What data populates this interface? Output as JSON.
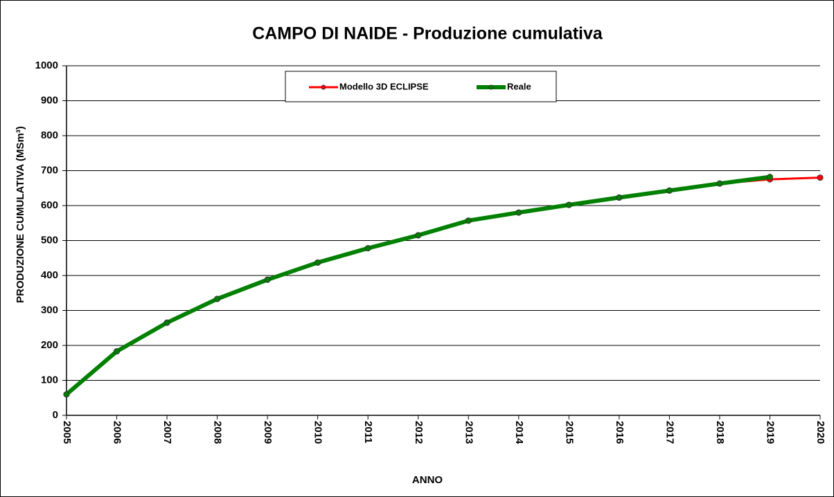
{
  "chart_data": {
    "type": "line",
    "title": "CAMPO DI NAIDE  - Produzione cumulativa",
    "x_label": "ANNO",
    "y_label": "PRODUZIONE  CUMULATIVA (MSm³)",
    "x": [
      2005,
      2006,
      2007,
      2008,
      2009,
      2010,
      2011,
      2012,
      2013,
      2014,
      2015,
      2016,
      2017,
      2018,
      2019,
      2020
    ],
    "xlim": [
      2005,
      2020
    ],
    "xticks": [
      2005,
      2006,
      2007,
      2008,
      2009,
      2010,
      2011,
      2012,
      2013,
      2014,
      2015,
      2016,
      2017,
      2018,
      2019,
      2020
    ],
    "ylim": [
      0,
      1000
    ],
    "yticks": [
      0,
      100,
      200,
      300,
      400,
      500,
      600,
      700,
      800,
      900,
      1000
    ],
    "grid": true,
    "legend": "top",
    "series": [
      {
        "name": "Modello 3D ECLIPSE",
        "color": "#ff0000",
        "values": [
          60,
          183,
          265,
          333,
          388,
          437,
          478,
          515,
          557,
          580,
          602,
          623,
          643,
          663,
          675,
          680
        ]
      },
      {
        "name": "Reale",
        "color": "#008000",
        "values": [
          60,
          183,
          265,
          333,
          388,
          437,
          478,
          515,
          557,
          580,
          602,
          623,
          643,
          663,
          682,
          null
        ]
      }
    ]
  }
}
